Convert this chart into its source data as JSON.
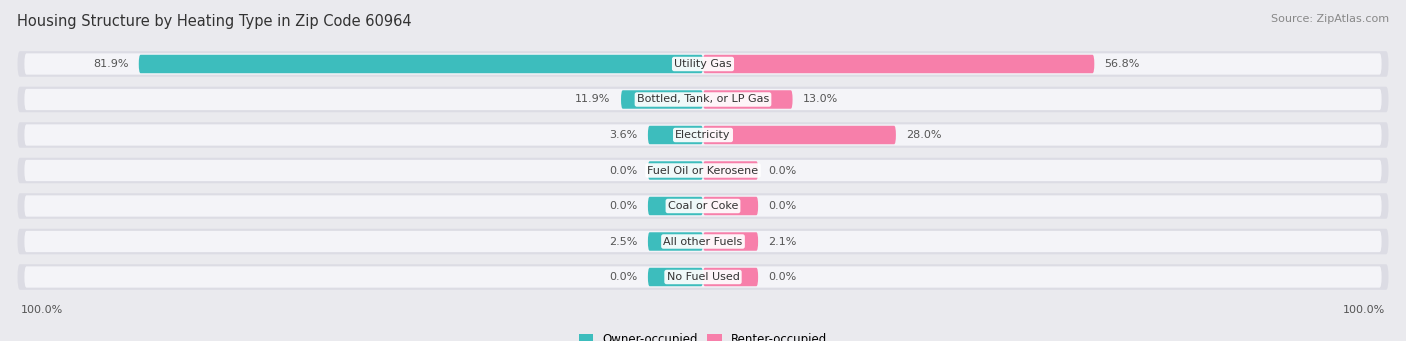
{
  "title": "Housing Structure by Heating Type in Zip Code 60964",
  "source": "Source: ZipAtlas.com",
  "categories": [
    "Utility Gas",
    "Bottled, Tank, or LP Gas",
    "Electricity",
    "Fuel Oil or Kerosene",
    "Coal or Coke",
    "All other Fuels",
    "No Fuel Used"
  ],
  "owner_values": [
    81.9,
    11.9,
    3.6,
    0.0,
    0.0,
    2.5,
    0.0
  ],
  "renter_values": [
    56.8,
    13.0,
    28.0,
    0.0,
    0.0,
    2.1,
    0.0
  ],
  "owner_color": "#3DBDBD",
  "renter_color": "#F77FAA",
  "bar_height": 0.52,
  "background_color": "#eaeaee",
  "row_bg_light": "#f4f4f8",
  "row_bg_outer": "#dcdce4",
  "max_val": 100.0,
  "legend_owner": "Owner-occupied",
  "legend_renter": "Renter-occupied",
  "title_fontsize": 10.5,
  "source_fontsize": 8,
  "label_fontsize": 8,
  "category_fontsize": 8
}
